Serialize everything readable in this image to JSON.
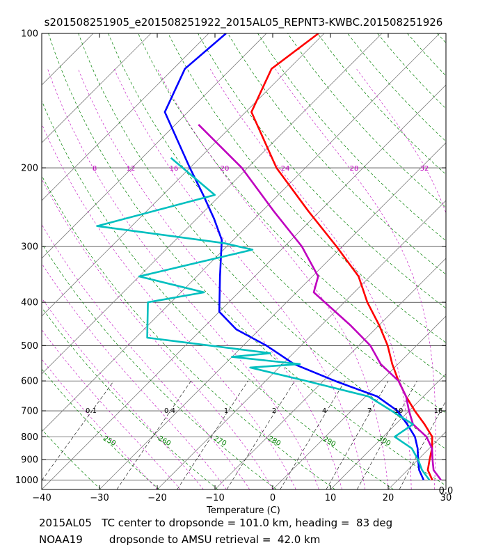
{
  "chart_data": {
    "type": "line",
    "title": "s201508251905_e201508251922_2015AL05_REPNT3-KWBC.201508251926",
    "xlabel": "Temperature (C)",
    "ylabel": "",
    "xlim": [
      -40,
      30
    ],
    "ylim": [
      1050,
      100
    ],
    "y_scale": "log",
    "x_ticks": [
      -40,
      -30,
      -20,
      -10,
      0,
      10,
      20,
      30
    ],
    "y_ticks": [
      100,
      200,
      300,
      400,
      500,
      600,
      700,
      800,
      900,
      1000
    ],
    "grid": true,
    "skew": "isotherms tilt 45 degrees",
    "colors": {
      "red": "#ff0000",
      "blue": "#0000ff",
      "magenta": "#bf00bf",
      "cyan": "#00bfbf",
      "dry_adiabat": "#008000",
      "moist_adiabat": "#bf00bf",
      "mixing_ratio": "#000000",
      "isotherm": "#808080"
    },
    "series": [
      {
        "color": "red",
        "points": [
          {
            "p": 100,
            "t": -71.0
          },
          {
            "p": 120,
            "t": -73.0
          },
          {
            "p": 150,
            "t": -69.0
          },
          {
            "p": 200,
            "t": -55.0
          },
          {
            "p": 250,
            "t": -42.0
          },
          {
            "p": 300,
            "t": -31.0
          },
          {
            "p": 350,
            "t": -22.0
          },
          {
            "p": 400,
            "t": -16.0
          },
          {
            "p": 450,
            "t": -10.0
          },
          {
            "p": 500,
            "t": -5.0
          },
          {
            "p": 550,
            "t": -1.0
          },
          {
            "p": 600,
            "t": 3.0
          },
          {
            "p": 650,
            "t": 7.0
          },
          {
            "p": 700,
            "t": 11.0
          },
          {
            "p": 750,
            "t": 15.0
          },
          {
            "p": 800,
            "t": 18.5
          },
          {
            "p": 850,
            "t": 20.5
          },
          {
            "p": 900,
            "t": 22.0
          },
          {
            "p": 950,
            "t": 23.5
          },
          {
            "p": 1000,
            "t": 26.0
          }
        ]
      },
      {
        "color": "blue",
        "points": [
          {
            "p": 100,
            "t": -87.0
          },
          {
            "p": 120,
            "t": -88.0
          },
          {
            "p": 150,
            "t": -84.0
          },
          {
            "p": 200,
            "t": -70.0
          },
          {
            "p": 230,
            "t": -63.0
          },
          {
            "p": 260,
            "t": -57.0
          },
          {
            "p": 290,
            "t": -52.0
          },
          {
            "p": 350,
            "t": -46.0
          },
          {
            "p": 420,
            "t": -40.0
          },
          {
            "p": 460,
            "t": -34.0
          },
          {
            "p": 500,
            "t": -26.0
          },
          {
            "p": 550,
            "t": -18.0
          },
          {
            "p": 600,
            "t": -8.0
          },
          {
            "p": 650,
            "t": 2.0
          },
          {
            "p": 700,
            "t": 8.0
          },
          {
            "p": 750,
            "t": 12.0
          },
          {
            "p": 800,
            "t": 15.5
          },
          {
            "p": 850,
            "t": 18.0
          },
          {
            "p": 900,
            "t": 20.0
          },
          {
            "p": 950,
            "t": 22.0
          },
          {
            "p": 1000,
            "t": 24.5
          }
        ]
      },
      {
        "color": "magenta",
        "points": [
          {
            "p": 160,
            "t": -76.0
          },
          {
            "p": 200,
            "t": -61.0
          },
          {
            "p": 250,
            "t": -48.0
          },
          {
            "p": 300,
            "t": -37.0
          },
          {
            "p": 350,
            "t": -29.0
          },
          {
            "p": 380,
            "t": -27.0
          },
          {
            "p": 450,
            "t": -15.0
          },
          {
            "p": 500,
            "t": -8.0
          },
          {
            "p": 550,
            "t": -3.0
          },
          {
            "p": 600,
            "t": 3.0
          },
          {
            "p": 650,
            "t": 7.0
          },
          {
            "p": 700,
            "t": 10.0
          },
          {
            "p": 750,
            "t": 13.0
          },
          {
            "p": 800,
            "t": 17.5
          },
          {
            "p": 850,
            "t": 20.5
          },
          {
            "p": 900,
            "t": 22.5
          },
          {
            "p": 950,
            "t": 24.5
          },
          {
            "p": 1000,
            "t": 27.5
          }
        ]
      },
      {
        "color": "cyan",
        "points": [
          {
            "p": 190,
            "t": -75.0
          },
          {
            "p": 230,
            "t": -61.0
          },
          {
            "p": 270,
            "t": -76.0
          },
          {
            "p": 295,
            "t": -51.0
          },
          {
            "p": 305,
            "t": -45.0
          },
          {
            "p": 350,
            "t": -60.0
          },
          {
            "p": 380,
            "t": -46.0
          },
          {
            "p": 400,
            "t": -54.0
          },
          {
            "p": 480,
            "t": -48.0
          },
          {
            "p": 520,
            "t": -24.0
          },
          {
            "p": 530,
            "t": -30.0
          },
          {
            "p": 550,
            "t": -17.0
          },
          {
            "p": 560,
            "t": -25.0
          },
          {
            "p": 600,
            "t": -13.0
          },
          {
            "p": 650,
            "t": 0.5
          },
          {
            "p": 700,
            "t": 7.0
          },
          {
            "p": 750,
            "t": 13.0
          },
          {
            "p": 800,
            "t": 12.0
          },
          {
            "p": 850,
            "t": 17.0
          },
          {
            "p": 900,
            "t": 20.0
          },
          {
            "p": 950,
            "t": 22.5
          },
          {
            "p": 1000,
            "t": 25.5
          }
        ]
      }
    ],
    "dry_adiabats": [
      250,
      260,
      270,
      280,
      290,
      300
    ],
    "moist_adiabat_labels": [
      8,
      12,
      16,
      20,
      24,
      28,
      32
    ],
    "mixing_ratio_labels": [
      "0.1",
      "0.4",
      "1",
      "2",
      "4",
      "7",
      "10",
      "16"
    ],
    "corner_label": "0.0"
  },
  "caption": {
    "line1": "2015AL05   TC center to dropsonde = 101.0 km, heading =  83 deg",
    "line2": "NOAA19        dropsonde to AMSU retrieval =  42.0 km"
  }
}
